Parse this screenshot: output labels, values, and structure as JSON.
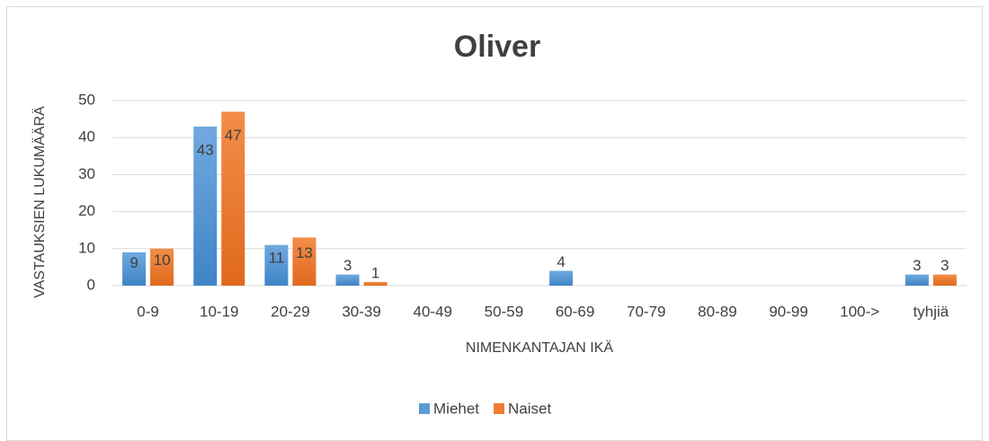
{
  "chart_data": {
    "type": "bar",
    "title": "Oliver",
    "x_label": "NIMENKANTAJAN IKÄ",
    "y_label": "VASTAUKSIEN LUKUMÄÄRÄ",
    "categories": [
      "0-9",
      "10-19",
      "20-29",
      "30-39",
      "40-49",
      "50-59",
      "60-69",
      "70-79",
      "80-89",
      "90-99",
      "100->",
      "tyhjiä"
    ],
    "series": [
      {
        "name": "Miehet",
        "color": "#5b9bd5",
        "values": [
          9,
          43,
          11,
          3,
          0,
          0,
          4,
          0,
          0,
          0,
          0,
          3
        ]
      },
      {
        "name": "Naiset",
        "color": "#ed7d31",
        "values": [
          10,
          47,
          13,
          1,
          0,
          0,
          0,
          0,
          0,
          0,
          0,
          3
        ]
      }
    ],
    "ylim": [
      0,
      50
    ],
    "yticks": [
      0,
      10,
      20,
      30,
      40,
      50
    ],
    "grid": true,
    "legend": "bottom"
  }
}
